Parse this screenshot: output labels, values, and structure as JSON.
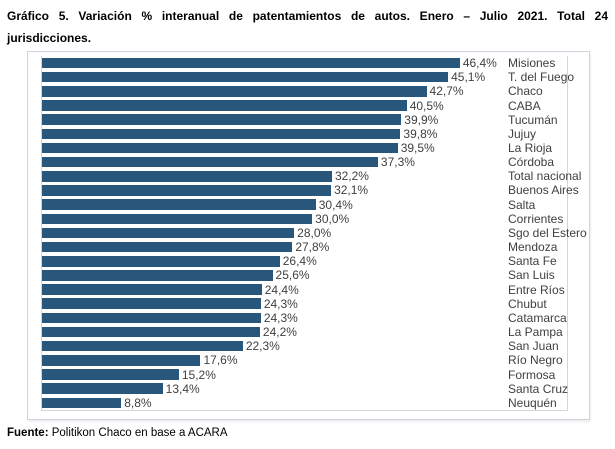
{
  "title": {
    "line1": "Gráfico 5. Variación % interanual de patentamientos de autos. Enero – Julio 2021. Total 24",
    "line2": "jurisdicciones."
  },
  "source": {
    "label": "Fuente:",
    "text": " Politikon Chaco en base a ACARA"
  },
  "chart_data": {
    "type": "bar",
    "orientation": "horizontal",
    "title": "Variación % interanual de patentamientos de autos. Enero – Julio 2021",
    "categories": [
      "Misiones",
      "T. del Fuego",
      "Chaco",
      "CABA",
      "Tucumán",
      "Jujuy",
      "La Rioja",
      "Córdoba",
      "Total nacional",
      "Buenos Aires",
      "Salta",
      "Corrientes",
      "Sgo del Estero",
      "Mendoza",
      "Santa Fe",
      "San Luis",
      "Entre Ríos",
      "Chubut",
      "Catamarca",
      "La Pampa",
      "San Juan",
      "Río Negro",
      "Formosa",
      "Santa Cruz",
      "Neuquén"
    ],
    "values": [
      46.4,
      45.1,
      42.7,
      40.5,
      39.9,
      39.8,
      39.5,
      37.3,
      32.2,
      32.1,
      30.4,
      30.0,
      28.0,
      27.8,
      26.4,
      25.6,
      24.4,
      24.3,
      24.3,
      24.2,
      22.3,
      17.6,
      15.2,
      13.4,
      8.8
    ],
    "value_labels": [
      "46,4%",
      "45,1%",
      "42,7%",
      "40,5%",
      "39,9%",
      "39,8%",
      "39,5%",
      "37,3%",
      "32,2%",
      "32,1%",
      "30,4%",
      "30,0%",
      "28,0%",
      "27,8%",
      "26,4%",
      "25,6%",
      "24,4%",
      "24,3%",
      "24,3%",
      "24,2%",
      "22,3%",
      "17,6%",
      "15,2%",
      "13,4%",
      "8,8%"
    ],
    "bar_color": "#29567B",
    "axis_line_color": "#d6d6d6",
    "xlim": [
      0,
      58.3
    ],
    "grid": false,
    "legend": false,
    "category_labels_position": "right"
  }
}
